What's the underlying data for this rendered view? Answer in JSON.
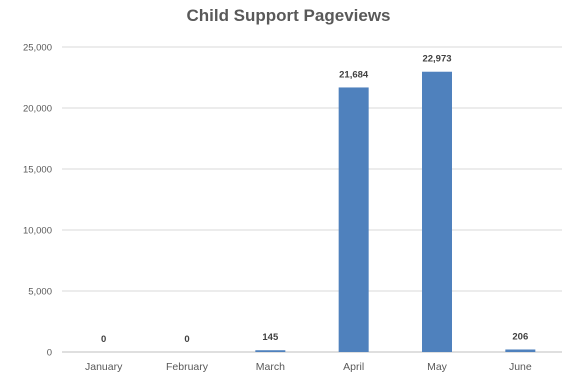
{
  "chart_data": {
    "type": "bar",
    "title": "Child Support Pageviews",
    "categories": [
      "January",
      "February",
      "March",
      "April",
      "May",
      "June"
    ],
    "values": [
      0,
      0,
      145,
      21684,
      22973,
      206
    ],
    "data_labels": [
      "0",
      "0",
      "145",
      "21,684",
      "22,973",
      "206"
    ],
    "y_ticks": [
      0,
      5000,
      10000,
      15000,
      20000,
      25000
    ],
    "y_tick_labels": [
      "0",
      "5,000",
      "10,000",
      "15,000",
      "20,000",
      "25,000"
    ],
    "ylim": [
      0,
      25000
    ],
    "grid": true,
    "legend": "none",
    "bar_color": "#4F81BD"
  }
}
